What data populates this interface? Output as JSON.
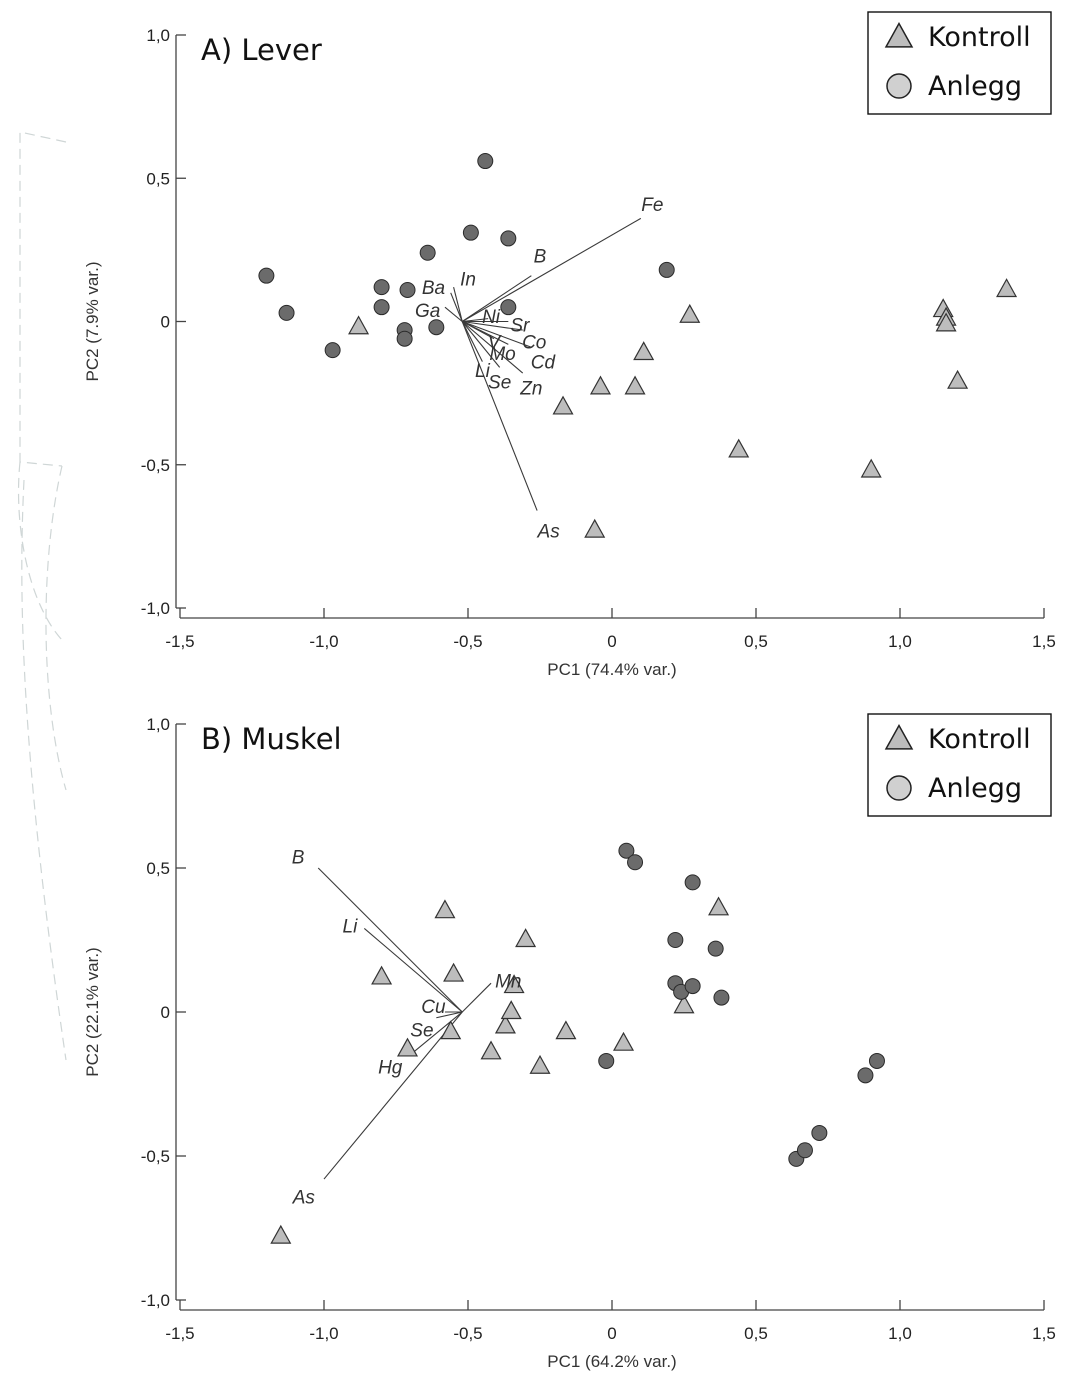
{
  "legend": {
    "entries": [
      {
        "label": "Kontroll",
        "marker": "triangle"
      },
      {
        "label": "Anlegg",
        "marker": "circle"
      }
    ]
  },
  "colors": {
    "anlegg_fill": "#6b6b6b",
    "kontroll_fill": "#bdbdbd",
    "axis": "#444444",
    "loading_line": "#3a3a3a"
  },
  "chart_data": [
    {
      "type": "scatter",
      "title": "A) Lever",
      "xlabel": "PC1 (74.4% var.)",
      "ylabel": "PC2 (7.9% var.)",
      "xlim": [
        -1.5,
        1.5
      ],
      "ylim": [
        -1.0,
        1.0
      ],
      "xticks": [
        -1.5,
        -1.0,
        -0.5,
        0,
        0.5,
        1.0,
        1.5
      ],
      "xtick_labels": [
        "-1,5",
        "-1,0",
        "-0,5",
        "0",
        "0,5",
        "1,0",
        "1,5"
      ],
      "yticks": [
        -1.0,
        -0.5,
        0,
        0.5,
        1.0
      ],
      "ytick_labels": [
        "-1,0",
        "-0,5",
        "0",
        "0,5",
        "1,0"
      ],
      "grid": false,
      "legend_position": "top-right",
      "series": [
        {
          "name": "Kontroll",
          "marker": "triangle",
          "points": [
            [
              -0.88,
              -0.02
            ],
            [
              -0.06,
              -0.73
            ],
            [
              -0.17,
              -0.3
            ],
            [
              -0.04,
              -0.23
            ],
            [
              0.08,
              -0.23
            ],
            [
              0.11,
              -0.11
            ],
            [
              0.27,
              0.02
            ],
            [
              0.44,
              -0.45
            ],
            [
              0.9,
              -0.52
            ],
            [
              1.15,
              0.04
            ],
            [
              1.16,
              0.01
            ],
            [
              1.16,
              -0.01
            ],
            [
              1.2,
              -0.21
            ],
            [
              1.37,
              0.11
            ]
          ]
        },
        {
          "name": "Anlegg",
          "marker": "circle",
          "points": [
            [
              -1.2,
              0.16
            ],
            [
              -1.13,
              0.03
            ],
            [
              -0.97,
              -0.1
            ],
            [
              -0.8,
              0.12
            ],
            [
              -0.8,
              0.05
            ],
            [
              -0.72,
              -0.03
            ],
            [
              -0.72,
              -0.06
            ],
            [
              -0.71,
              0.11
            ],
            [
              -0.64,
              0.24
            ],
            [
              -0.61,
              -0.02
            ],
            [
              -0.49,
              0.31
            ],
            [
              -0.44,
              0.56
            ],
            [
              -0.36,
              0.29
            ],
            [
              -0.36,
              0.05
            ],
            [
              0.19,
              0.18
            ]
          ]
        }
      ],
      "loadings": {
        "origin": [
          -0.52,
          0.0
        ],
        "vectors": [
          {
            "label": "Fe",
            "end": [
              0.1,
              0.36
            ],
            "label_at": [
              0.14,
              0.41
            ]
          },
          {
            "label": "B",
            "end": [
              -0.28,
              0.16
            ],
            "label_at": [
              -0.25,
              0.23
            ]
          },
          {
            "label": "In",
            "end": [
              -0.55,
              0.12
            ],
            "label_at": [
              -0.5,
              0.15
            ]
          },
          {
            "label": "Ba",
            "end": [
              -0.56,
              0.1
            ],
            "label_at": [
              -0.62,
              0.12
            ]
          },
          {
            "label": "Ga",
            "end": [
              -0.58,
              0.05
            ],
            "label_at": [
              -0.64,
              0.04
            ]
          },
          {
            "label": "Ni",
            "end": [
              -0.43,
              0.01
            ],
            "label_at": [
              -0.42,
              0.02
            ]
          },
          {
            "label": "Sr",
            "end": [
              -0.36,
              0.0
            ],
            "label_at": [
              -0.32,
              -0.01
            ]
          },
          {
            "label": "Co",
            "end": [
              -0.31,
              -0.03
            ],
            "label_at": [
              -0.27,
              -0.07
            ]
          },
          {
            "label": "V",
            "end": [
              -0.41,
              -0.06
            ],
            "label_at": [
              -0.41,
              -0.07
            ]
          },
          {
            "label": "Mo",
            "end": [
              -0.36,
              -0.08
            ],
            "label_at": [
              -0.38,
              -0.11
            ]
          },
          {
            "label": "Cd",
            "end": [
              -0.28,
              -0.09
            ],
            "label_at": [
              -0.24,
              -0.14
            ]
          },
          {
            "label": "Li",
            "end": [
              -0.45,
              -0.14
            ],
            "label_at": [
              -0.45,
              -0.17
            ]
          },
          {
            "label": "Se",
            "end": [
              -0.39,
              -0.16
            ],
            "label_at": [
              -0.39,
              -0.21
            ]
          },
          {
            "label": "Zn",
            "end": [
              -0.31,
              -0.18
            ],
            "label_at": [
              -0.28,
              -0.23
            ]
          },
          {
            "label": "As",
            "end": [
              -0.26,
              -0.66
            ],
            "label_at": [
              -0.22,
              -0.73
            ]
          }
        ]
      }
    },
    {
      "type": "scatter",
      "title": "B) Muskel",
      "xlabel": "PC1 (64.2% var.)",
      "ylabel": "PC2 (22.1% var.)",
      "xlim": [
        -1.5,
        1.5
      ],
      "ylim": [
        -1.0,
        1.0
      ],
      "xticks": [
        -1.5,
        -1.0,
        -0.5,
        0,
        0.5,
        1.0,
        1.5
      ],
      "xtick_labels": [
        "-1,5",
        "-1,0",
        "-0,5",
        "0",
        "0,5",
        "1,0",
        "1,5"
      ],
      "yticks": [
        -1.0,
        -0.5,
        0,
        0.5,
        1.0
      ],
      "ytick_labels": [
        "-1,0",
        "-0,5",
        "0",
        "0,5",
        "1,0"
      ],
      "grid": false,
      "legend_position": "top-right",
      "series": [
        {
          "name": "Kontroll",
          "marker": "triangle",
          "points": [
            [
              -1.15,
              -0.78
            ],
            [
              -0.8,
              0.12
            ],
            [
              -0.71,
              -0.13
            ],
            [
              -0.58,
              0.35
            ],
            [
              -0.55,
              0.13
            ],
            [
              -0.56,
              -0.07
            ],
            [
              -0.42,
              -0.14
            ],
            [
              -0.37,
              -0.05
            ],
            [
              -0.35,
              0.0
            ],
            [
              -0.34,
              0.09
            ],
            [
              -0.3,
              0.25
            ],
            [
              -0.25,
              -0.19
            ],
            [
              -0.16,
              -0.07
            ],
            [
              0.04,
              -0.11
            ],
            [
              0.25,
              0.02
            ],
            [
              0.37,
              0.36
            ]
          ]
        },
        {
          "name": "Anlegg",
          "marker": "circle",
          "points": [
            [
              -0.02,
              -0.17
            ],
            [
              0.05,
              0.56
            ],
            [
              0.08,
              0.52
            ],
            [
              0.22,
              0.25
            ],
            [
              0.22,
              0.1
            ],
            [
              0.24,
              0.07
            ],
            [
              0.28,
              0.45
            ],
            [
              0.28,
              0.09
            ],
            [
              0.36,
              0.22
            ],
            [
              0.38,
              0.05
            ],
            [
              0.64,
              -0.51
            ],
            [
              0.67,
              -0.48
            ],
            [
              0.72,
              -0.42
            ],
            [
              0.88,
              -0.22
            ],
            [
              0.92,
              -0.17
            ]
          ]
        }
      ],
      "loadings": {
        "origin": [
          -0.52,
          0.0
        ],
        "vectors": [
          {
            "label": "B",
            "end": [
              -1.02,
              0.5
            ],
            "label_at": [
              -1.09,
              0.54
            ]
          },
          {
            "label": "Li",
            "end": [
              -0.86,
              0.29
            ],
            "label_at": [
              -0.91,
              0.3
            ]
          },
          {
            "label": "Mn",
            "end": [
              -0.42,
              0.1
            ],
            "label_at": [
              -0.36,
              0.11
            ]
          },
          {
            "label": "Cu",
            "end": [
              -0.58,
              0.0
            ],
            "label_at": [
              -0.62,
              0.02
            ]
          },
          {
            "label": "Se",
            "end": [
              -0.61,
              -0.02
            ],
            "label_at": [
              -0.66,
              -0.06
            ]
          },
          {
            "label": "Hg",
            "end": [
              -0.69,
              -0.14
            ],
            "label_at": [
              -0.77,
              -0.19
            ]
          },
          {
            "label": "As",
            "end": [
              -1.0,
              -0.58
            ],
            "label_at": [
              -1.07,
              -0.64
            ]
          }
        ]
      }
    }
  ]
}
